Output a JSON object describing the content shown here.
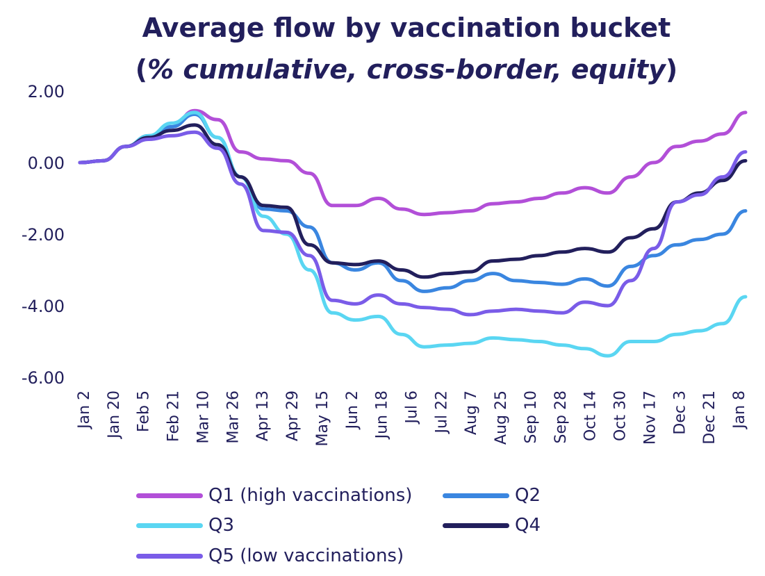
{
  "title_line1": "Average flow by vaccination bucket",
  "title_line2_open": "(",
  "title_line2_italic": "% cumulative, cross-border, equity",
  "title_line2_close": ")",
  "chart_data": {
    "type": "line",
    "title": "Average flow by vaccination bucket (% cumulative, cross-border, equity)",
    "xlabel": "",
    "ylabel": "",
    "ylim": [
      -6.0,
      2.0
    ],
    "y_ticks": [
      "2.00",
      "0.00",
      "-2.00",
      "-4.00",
      "-6.00"
    ],
    "y_tick_values": [
      2,
      0,
      -2,
      -4,
      -6
    ],
    "x_tick_labels": [
      "Jan 2",
      "Jan 20",
      "Feb 5",
      "Feb 21",
      "Mar 10",
      "Mar 26",
      "Apr 13",
      "Apr 29",
      "May 15",
      "Jun 2",
      "Jun 18",
      "Jul 6",
      "Jul 22",
      "Aug 7",
      "Aug 25",
      "Sep 10",
      "Sep 28",
      "Oct 14",
      "Oct 30",
      "Nov 17",
      "Dec 3",
      "Dec 21",
      "Jan 8"
    ],
    "grid": false,
    "legend_position": "bottom",
    "series": [
      {
        "name": "Q1 (high vaccinations)",
        "color": "#b24fd8",
        "values": [
          0.0,
          0.05,
          0.45,
          0.75,
          1.0,
          1.45,
          1.2,
          0.3,
          0.1,
          0.05,
          -0.3,
          -1.2,
          -1.2,
          -1.0,
          -1.3,
          -1.45,
          -1.4,
          -1.35,
          -1.15,
          -1.1,
          -1.0,
          -0.85,
          -0.7,
          -0.85,
          -0.4,
          0.0,
          0.45,
          0.6,
          0.8,
          1.4
        ]
      },
      {
        "name": "Q2",
        "color": "#3a86e0",
        "values": [
          0.0,
          0.05,
          0.45,
          0.7,
          1.0,
          1.35,
          0.7,
          -0.4,
          -1.3,
          -1.35,
          -1.8,
          -2.8,
          -3.0,
          -2.8,
          -3.3,
          -3.6,
          -3.5,
          -3.3,
          -3.1,
          -3.3,
          -3.35,
          -3.4,
          -3.25,
          -3.45,
          -2.9,
          -2.6,
          -2.3,
          -2.15,
          -2.0,
          -1.35
        ]
      },
      {
        "name": "Q3",
        "color": "#5ad6f2",
        "values": [
          0.0,
          0.05,
          0.45,
          0.75,
          1.1,
          1.4,
          0.7,
          -0.4,
          -1.5,
          -2.0,
          -3.0,
          -4.2,
          -4.4,
          -4.3,
          -4.8,
          -5.15,
          -5.1,
          -5.05,
          -4.9,
          -4.95,
          -5.0,
          -5.1,
          -5.2,
          -5.4,
          -5.0,
          -5.0,
          -4.8,
          -4.7,
          -4.5,
          -3.75
        ]
      },
      {
        "name": "Q4",
        "color": "#221f5c",
        "values": [
          0.0,
          0.05,
          0.45,
          0.7,
          0.9,
          1.05,
          0.5,
          -0.4,
          -1.2,
          -1.25,
          -2.3,
          -2.8,
          -2.85,
          -2.75,
          -3.0,
          -3.2,
          -3.1,
          -3.05,
          -2.75,
          -2.7,
          -2.6,
          -2.5,
          -2.4,
          -2.5,
          -2.1,
          -1.85,
          -1.1,
          -0.85,
          -0.5,
          0.05
        ]
      },
      {
        "name": "Q5 (low vaccinations)",
        "color": "#7a5ce8",
        "values": [
          0.0,
          0.05,
          0.45,
          0.65,
          0.75,
          0.85,
          0.4,
          -0.6,
          -1.9,
          -1.95,
          -2.6,
          -3.85,
          -3.95,
          -3.7,
          -3.95,
          -4.05,
          -4.1,
          -4.25,
          -4.15,
          -4.1,
          -4.15,
          -4.2,
          -3.9,
          -4.0,
          -3.3,
          -2.4,
          -1.1,
          -0.9,
          -0.4,
          0.3
        ]
      }
    ]
  },
  "legend": [
    {
      "label": "Q1 (high vaccinations)",
      "color": "#b24fd8"
    },
    {
      "label": "Q2",
      "color": "#3a86e0"
    },
    {
      "label": "Q3",
      "color": "#5ad6f2"
    },
    {
      "label": "Q4",
      "color": "#221f5c"
    },
    {
      "label": "Q5 (low vaccinations)",
      "color": "#7a5ce8"
    }
  ]
}
